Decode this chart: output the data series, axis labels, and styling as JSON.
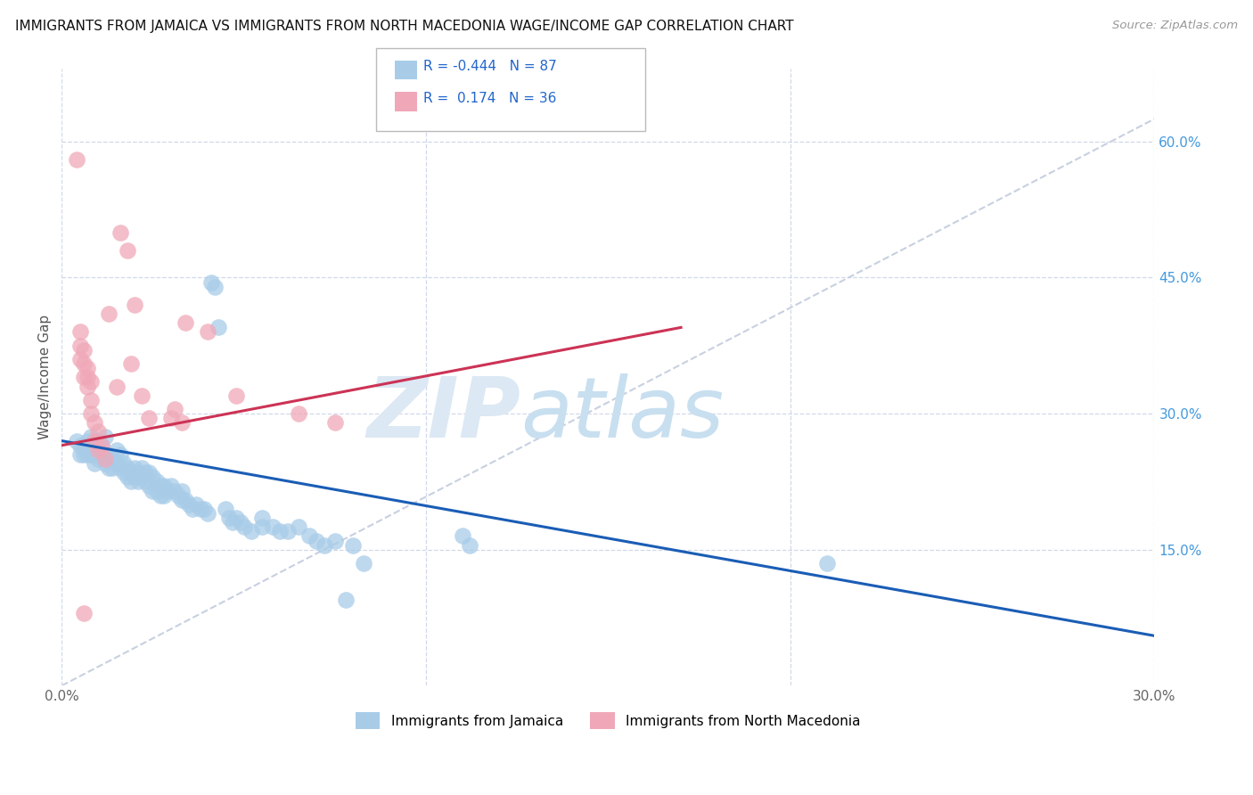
{
  "title": "IMMIGRANTS FROM JAMAICA VS IMMIGRANTS FROM NORTH MACEDONIA WAGE/INCOME GAP CORRELATION CHART",
  "source": "Source: ZipAtlas.com",
  "ylabel": "Wage/Income Gap",
  "right_yticks": [
    "60.0%",
    "45.0%",
    "30.0%",
    "15.0%"
  ],
  "right_ytick_vals": [
    0.6,
    0.45,
    0.3,
    0.15
  ],
  "xlim": [
    0.0,
    0.3
  ],
  "ylim": [
    0.0,
    0.68
  ],
  "watermark_zip": "ZIP",
  "watermark_atlas": "atlas",
  "legend_blue_label": "Immigrants from Jamaica",
  "legend_pink_label": "Immigrants from North Macedonia",
  "blue_color": "#a8cce8",
  "pink_color": "#f0a8b8",
  "blue_line_color": "#1a5db5",
  "pink_line_color": "#cc3355",
  "dashed_line_color": "#c8d0e0",
  "grid_color": "#d0d8e8",
  "blue_points": [
    [
      0.004,
      0.27
    ],
    [
      0.005,
      0.265
    ],
    [
      0.005,
      0.255
    ],
    [
      0.006,
      0.265
    ],
    [
      0.006,
      0.255
    ],
    [
      0.007,
      0.27
    ],
    [
      0.007,
      0.26
    ],
    [
      0.007,
      0.255
    ],
    [
      0.008,
      0.275
    ],
    [
      0.008,
      0.265
    ],
    [
      0.008,
      0.255
    ],
    [
      0.009,
      0.265
    ],
    [
      0.009,
      0.255
    ],
    [
      0.009,
      0.245
    ],
    [
      0.01,
      0.27
    ],
    [
      0.01,
      0.26
    ],
    [
      0.01,
      0.25
    ],
    [
      0.011,
      0.265
    ],
    [
      0.011,
      0.255
    ],
    [
      0.012,
      0.275
    ],
    [
      0.012,
      0.245
    ],
    [
      0.013,
      0.255
    ],
    [
      0.013,
      0.24
    ],
    [
      0.014,
      0.25
    ],
    [
      0.014,
      0.24
    ],
    [
      0.015,
      0.26
    ],
    [
      0.015,
      0.245
    ],
    [
      0.016,
      0.255
    ],
    [
      0.016,
      0.24
    ],
    [
      0.017,
      0.245
    ],
    [
      0.017,
      0.235
    ],
    [
      0.018,
      0.24
    ],
    [
      0.018,
      0.23
    ],
    [
      0.019,
      0.235
    ],
    [
      0.019,
      0.225
    ],
    [
      0.02,
      0.24
    ],
    [
      0.02,
      0.23
    ],
    [
      0.021,
      0.235
    ],
    [
      0.021,
      0.225
    ],
    [
      0.022,
      0.24
    ],
    [
      0.022,
      0.23
    ],
    [
      0.023,
      0.235
    ],
    [
      0.023,
      0.225
    ],
    [
      0.024,
      0.235
    ],
    [
      0.024,
      0.22
    ],
    [
      0.025,
      0.23
    ],
    [
      0.025,
      0.215
    ],
    [
      0.026,
      0.225
    ],
    [
      0.026,
      0.215
    ],
    [
      0.027,
      0.22
    ],
    [
      0.027,
      0.21
    ],
    [
      0.028,
      0.22
    ],
    [
      0.028,
      0.21
    ],
    [
      0.029,
      0.215
    ],
    [
      0.03,
      0.22
    ],
    [
      0.031,
      0.215
    ],
    [
      0.032,
      0.21
    ],
    [
      0.033,
      0.215
    ],
    [
      0.033,
      0.205
    ],
    [
      0.034,
      0.205
    ],
    [
      0.035,
      0.2
    ],
    [
      0.036,
      0.195
    ],
    [
      0.037,
      0.2
    ],
    [
      0.038,
      0.195
    ],
    [
      0.039,
      0.195
    ],
    [
      0.04,
      0.19
    ],
    [
      0.041,
      0.445
    ],
    [
      0.042,
      0.44
    ],
    [
      0.043,
      0.395
    ],
    [
      0.045,
      0.195
    ],
    [
      0.046,
      0.185
    ],
    [
      0.047,
      0.18
    ],
    [
      0.048,
      0.185
    ],
    [
      0.049,
      0.18
    ],
    [
      0.05,
      0.175
    ],
    [
      0.052,
      0.17
    ],
    [
      0.055,
      0.185
    ],
    [
      0.055,
      0.175
    ],
    [
      0.058,
      0.175
    ],
    [
      0.06,
      0.17
    ],
    [
      0.062,
      0.17
    ],
    [
      0.065,
      0.175
    ],
    [
      0.068,
      0.165
    ],
    [
      0.07,
      0.16
    ],
    [
      0.072,
      0.155
    ],
    [
      0.075,
      0.16
    ],
    [
      0.078,
      0.095
    ],
    [
      0.08,
      0.155
    ],
    [
      0.083,
      0.135
    ],
    [
      0.11,
      0.165
    ],
    [
      0.112,
      0.155
    ],
    [
      0.21,
      0.135
    ]
  ],
  "pink_points": [
    [
      0.004,
      0.58
    ],
    [
      0.005,
      0.39
    ],
    [
      0.005,
      0.375
    ],
    [
      0.005,
      0.36
    ],
    [
      0.006,
      0.37
    ],
    [
      0.006,
      0.355
    ],
    [
      0.006,
      0.34
    ],
    [
      0.006,
      0.08
    ],
    [
      0.007,
      0.35
    ],
    [
      0.007,
      0.34
    ],
    [
      0.007,
      0.33
    ],
    [
      0.008,
      0.335
    ],
    [
      0.008,
      0.315
    ],
    [
      0.008,
      0.3
    ],
    [
      0.009,
      0.29
    ],
    [
      0.009,
      0.27
    ],
    [
      0.01,
      0.28
    ],
    [
      0.01,
      0.26
    ],
    [
      0.011,
      0.265
    ],
    [
      0.012,
      0.25
    ],
    [
      0.013,
      0.41
    ],
    [
      0.015,
      0.33
    ],
    [
      0.016,
      0.5
    ],
    [
      0.018,
      0.48
    ],
    [
      0.019,
      0.355
    ],
    [
      0.02,
      0.42
    ],
    [
      0.022,
      0.32
    ],
    [
      0.024,
      0.295
    ],
    [
      0.03,
      0.295
    ],
    [
      0.031,
      0.305
    ],
    [
      0.033,
      0.29
    ],
    [
      0.034,
      0.4
    ],
    [
      0.04,
      0.39
    ],
    [
      0.048,
      0.32
    ],
    [
      0.065,
      0.3
    ],
    [
      0.075,
      0.29
    ]
  ],
  "blue_trend": [
    0.0,
    0.3,
    0.27,
    0.055
  ],
  "pink_trend": [
    0.0,
    0.17,
    0.265,
    0.395
  ],
  "dashed_trend": [
    0.0,
    0.3,
    0.0,
    0.625
  ]
}
